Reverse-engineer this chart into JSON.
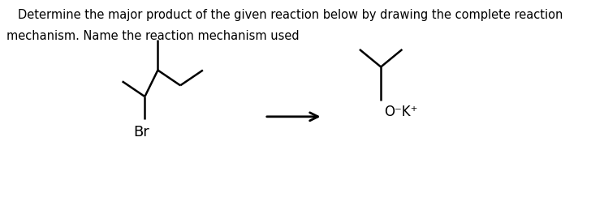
{
  "title_line1": "Determine the major product of the given reaction below by drawing the complete reaction",
  "title_line2": "mechanism. Name the reaction mechanism used",
  "title_fontsize": 10.5,
  "bg_color": "#ffffff",
  "line_color": "#000000",
  "line_width": 1.8,
  "br_label": "Br",
  "label_fontsize": 12
}
